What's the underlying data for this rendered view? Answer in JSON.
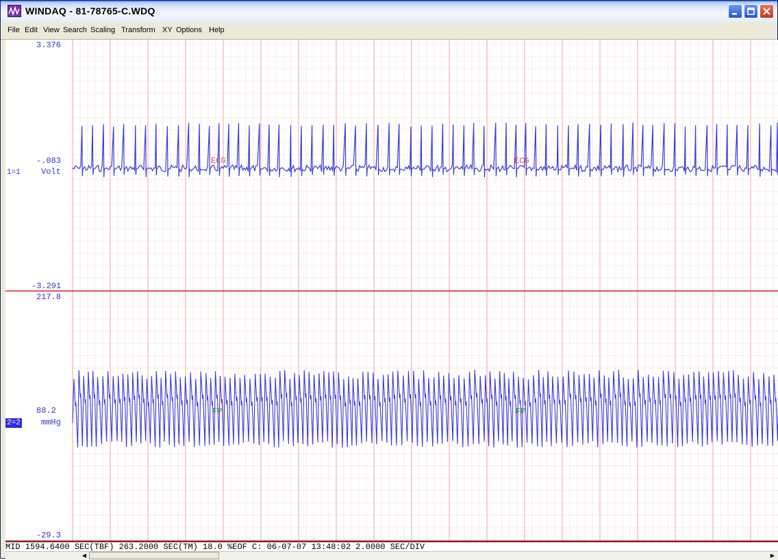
{
  "window": {
    "title": "WINDAQ - 81-78765-C.WDQ"
  },
  "menu": [
    "File",
    "Edit",
    "View",
    "Search",
    "Scaling",
    "Transform",
    "XY",
    "Options",
    "Help"
  ],
  "channel1": {
    "top_value": "3.376",
    "mid_value": "-.083",
    "unit": "Volt",
    "bottom_value": "-3.291",
    "selector": "1=1",
    "trace_label": "ECG",
    "color": "#3a3ad6"
  },
  "channel2": {
    "top_value": "217.8",
    "mid_value": "88.2",
    "unit": "mmHg",
    "bottom_value": "-29.3",
    "selector": "2=2",
    "trace_label": "FP",
    "color": "#3a3ad6"
  },
  "status": {
    "text": "MID    1594.6400 SEC(TBF)   263.2000 SEC(TM)   18.0 %EOF C:  06-07-07 13:48:02 2.0000 SEC/DIV"
  },
  "colors": {
    "grid": "#f09a9a",
    "trace": "#3a3ad6",
    "channel_divider": "#e02020",
    "selected_channel_bg": "#2c2ce0"
  }
}
